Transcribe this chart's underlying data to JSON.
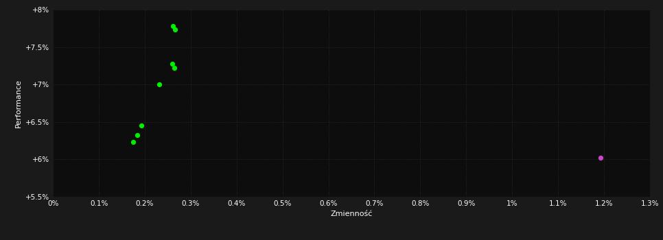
{
  "background_color": "#1a1a1a",
  "plot_bg_color": "#0d0d0d",
  "grid_color": "#2d2d2d",
  "text_color": "#ffffff",
  "xlabel": "Zmienność",
  "ylabel": "Performance",
  "xlim": [
    0.0,
    0.013
  ],
  "ylim": [
    0.055,
    0.08
  ],
  "xtick_vals": [
    0.0,
    0.001,
    0.002,
    0.003,
    0.004,
    0.005,
    0.006,
    0.007,
    0.008,
    0.009,
    0.01,
    0.011,
    0.012,
    0.013
  ],
  "xtick_labels": [
    "0%",
    "0.1%",
    "0.2%",
    "0.3%",
    "0.4%",
    "0.5%",
    "0.6%",
    "0.7%",
    "0.8%",
    "0.9%",
    "1%",
    "1.1%",
    "1.2%",
    "1.3%"
  ],
  "ytick_vals": [
    0.055,
    0.06,
    0.065,
    0.07,
    0.075,
    0.08
  ],
  "ytick_labels": [
    "+5.5%",
    "+6%",
    "+6.5%",
    "+7%",
    "+7.5%",
    "+8%"
  ],
  "green_points": [
    [
      0.00262,
      0.0778
    ],
    [
      0.00265,
      0.0773
    ],
    [
      0.0026,
      0.0728
    ],
    [
      0.00264,
      0.0722
    ],
    [
      0.00232,
      0.07
    ],
    [
      0.00192,
      0.0645
    ],
    [
      0.00183,
      0.0632
    ],
    [
      0.00175,
      0.0623
    ]
  ],
  "magenta_points": [
    [
      0.01193,
      0.0602
    ]
  ],
  "green_color": "#00ee00",
  "magenta_color": "#cc44cc",
  "point_size": 18
}
